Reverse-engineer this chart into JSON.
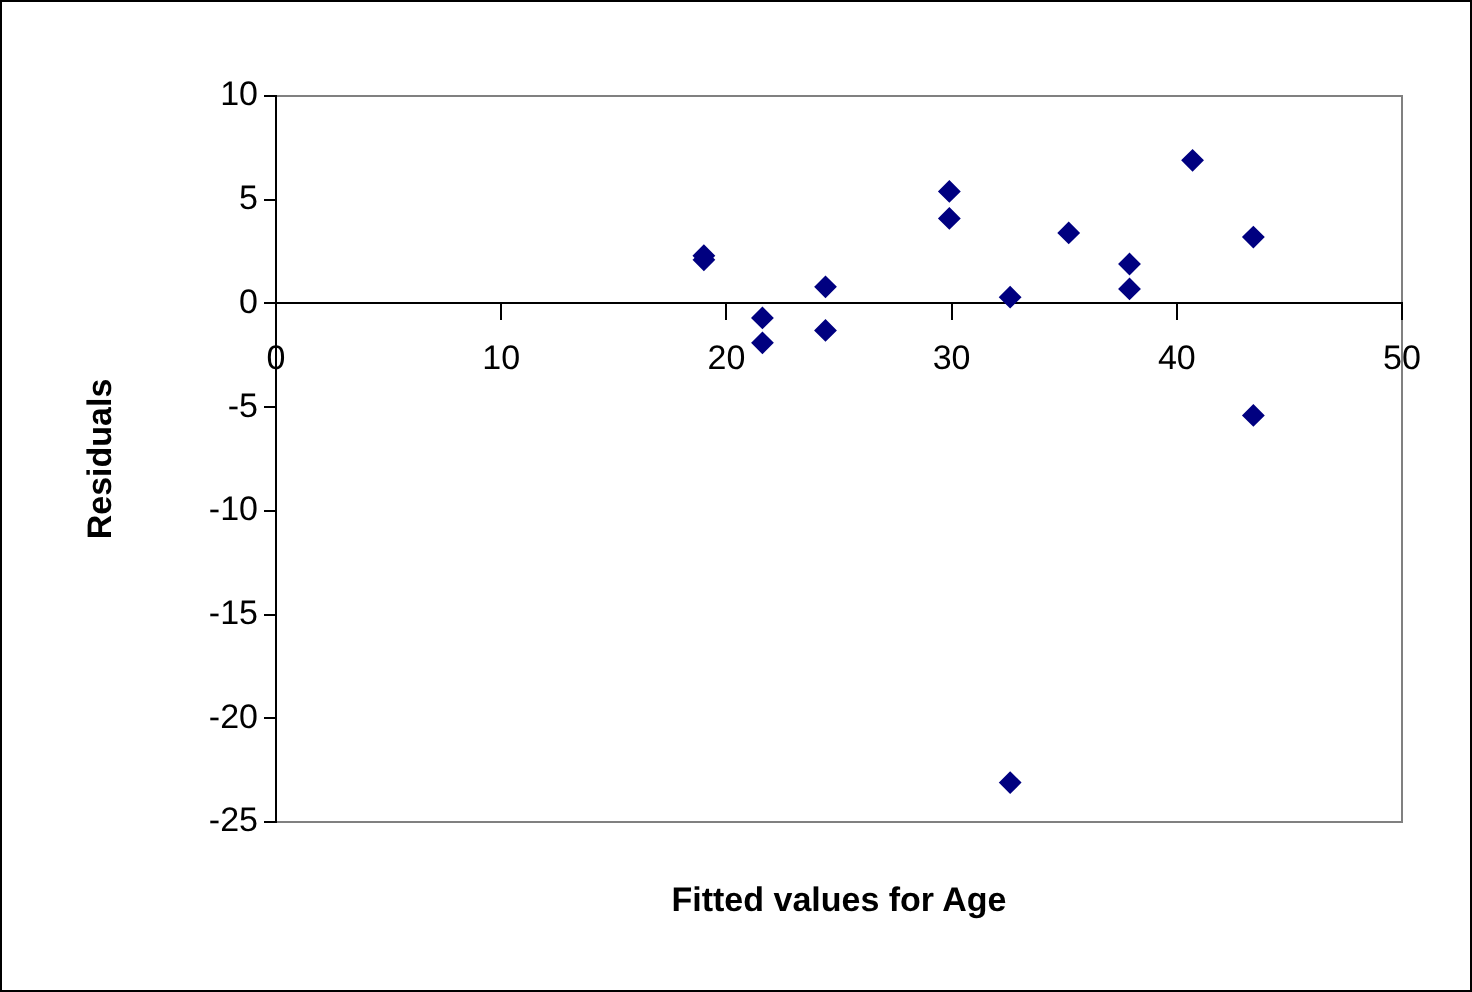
{
  "chart_data": {
    "type": "scatter",
    "xlabel": "Fitted values for Age",
    "ylabel": "Residuals",
    "x": [
      19.0,
      19.0,
      21.6,
      21.6,
      24.4,
      24.4,
      29.9,
      29.9,
      32.6,
      32.6,
      35.2,
      37.9,
      37.9,
      40.7,
      43.4,
      43.4
    ],
    "series": [
      {
        "color": "#000080",
        "values": [
          2.3,
          2.1,
          -0.7,
          -1.9,
          0.8,
          -1.3,
          5.4,
          4.1,
          0.3,
          -23.1,
          3.4,
          1.9,
          0.7,
          6.9,
          3.2,
          -5.4
        ]
      }
    ],
    "xlim": [
      0,
      50
    ],
    "xticks": [
      0,
      10,
      20,
      30,
      40,
      50
    ],
    "ylim": [
      -25,
      10
    ],
    "yticks": [
      -25,
      -20,
      -15,
      -10,
      -5,
      0,
      5,
      10
    ],
    "marker": "diamond",
    "grid": false,
    "legend": false
  }
}
